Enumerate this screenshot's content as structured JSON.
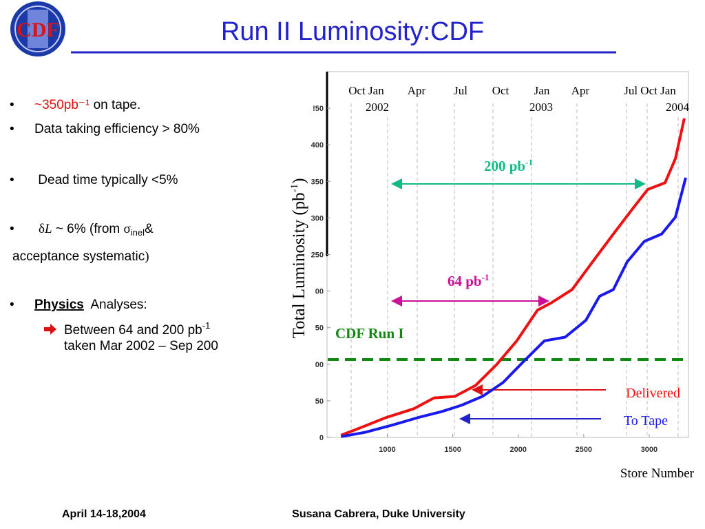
{
  "title": "Run II Luminosity:CDF",
  "logo": "CDF",
  "bullets": {
    "b1": {
      "red": "~350pb⁻¹",
      "rest": " on tape."
    },
    "b2": "Data taking efficiency  > 80%",
    "b3": " Dead time typically <5%",
    "b4": {
      "delta": "δ",
      "L": "L",
      "mid": " ~ 6% (from ",
      "sigma": "σ",
      "sub": "inel",
      "end": "&"
    },
    "b4b": "acceptance systematic",
    "b4c": ")",
    "b5": {
      "link": "Physics",
      "rest": "  Analyses:"
    },
    "b6": {
      "line1": "Between 64 and 200 pb",
      "sup": "-1",
      "line2": "taken  Mar 2002 – Sep 200"
    }
  },
  "footer": {
    "date": "April 14-18,2004",
    "author": "Susana Cabrera, Duke University"
  },
  "chart_data": {
    "type": "line",
    "x_label": "Store Number",
    "y_label": {
      "main": "Total Luminosity (pb",
      "sup": "-1",
      "close": ")"
    },
    "dates": [
      "Oct Jan",
      "2002",
      "Apr",
      "Jul",
      "Oct",
      "Jan",
      "2003",
      "Apr",
      "Jul Oct Jan",
      "2004"
    ],
    "annotations": {
      "a200": "200 pb",
      "a200sup": "-1",
      "a64": "64 pb",
      "a64sup": "-1",
      "run1": "CDF Run I"
    },
    "xlim": [
      540,
      3300
    ],
    "ylim": [
      0,
      500
    ],
    "xticks": [
      1000,
      1500,
      2000,
      2500,
      3000
    ],
    "yticks": [
      0,
      50,
      {
        "value": 100,
        "label": "00"
      },
      {
        "value": 150,
        "label": "50"
      },
      {
        "value": 200,
        "label": "00"
      },
      250,
      300,
      350,
      400,
      {
        "value": 450,
        "label": "!50"
      }
    ],
    "series": [
      {
        "name": "Delivered",
        "color": "#ee1111",
        "x": [
          647,
          779,
          989,
          1200,
          1358,
          1516,
          1674,
          1832,
          1989,
          2147,
          2253,
          2411,
          2568,
          2726,
          2884,
          2989,
          3121,
          3200,
          3268
        ],
        "values": [
          3,
          12,
          27,
          39,
          54,
          56,
          71,
          99,
          132,
          174,
          184,
          202,
          240,
          278,
          315,
          339,
          348,
          381,
          436
        ]
      },
      {
        "name": "To Tape",
        "color": "#1a1aee",
        "x": [
          647,
          832,
          1042,
          1253,
          1411,
          1568,
          1726,
          1884,
          2042,
          2200,
          2358,
          2516,
          2621,
          2726,
          2832,
          2963,
          3095,
          3200,
          3279
        ],
        "values": [
          1,
          7,
          17,
          28,
          35,
          44,
          56,
          75,
          104,
          132,
          137,
          160,
          193,
          202,
          240,
          268,
          278,
          301,
          355
        ]
      }
    ]
  }
}
